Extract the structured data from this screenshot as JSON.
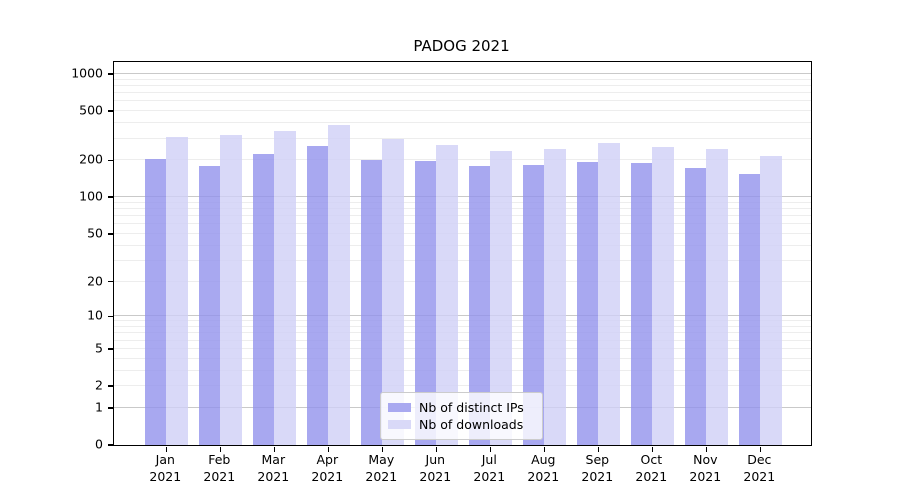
{
  "title": "PADOG 2021",
  "legend": {
    "items": [
      {
        "label": "Nb of distinct IPs",
        "color": "#a9a9f0"
      },
      {
        "label": "Nb of downloads",
        "color": "#d9d9f8"
      }
    ],
    "position": "lower center"
  },
  "colors": {
    "bar_ips": "rgba(146,146,236,0.8)",
    "bar_downloads": "rgba(208,208,246,0.8)",
    "grid_major": "#c9c9c9",
    "grid_minor": "#ededed",
    "axis": "#000000",
    "background": "#ffffff"
  },
  "chart_data": {
    "type": "bar",
    "title": "PADOG 2021",
    "categories": [
      "Jan 2021",
      "Feb 2021",
      "Mar 2021",
      "Apr 2021",
      "May 2021",
      "Jun 2021",
      "Jul 2021",
      "Aug 2021",
      "Sep 2021",
      "Oct 2021",
      "Nov 2021",
      "Dec 2021"
    ],
    "series": [
      {
        "name": "Nb of distinct IPs",
        "values": [
          203,
          178,
          224,
          260,
          200,
          197,
          178,
          182,
          194,
          190,
          172,
          155
        ]
      },
      {
        "name": "Nb of downloads",
        "values": [
          310,
          320,
          347,
          388,
          296,
          266,
          238,
          246,
          275,
          257,
          247,
          218
        ]
      }
    ],
    "xlabel": "",
    "ylabel": "",
    "yscale": "log1p",
    "yticks": [
      1000,
      500,
      200,
      100,
      50,
      20,
      10,
      5,
      2,
      1,
      0
    ],
    "ylim": [
      0,
      1100
    ],
    "grid": "horizontal-minor",
    "legend_position": "lower center"
  }
}
